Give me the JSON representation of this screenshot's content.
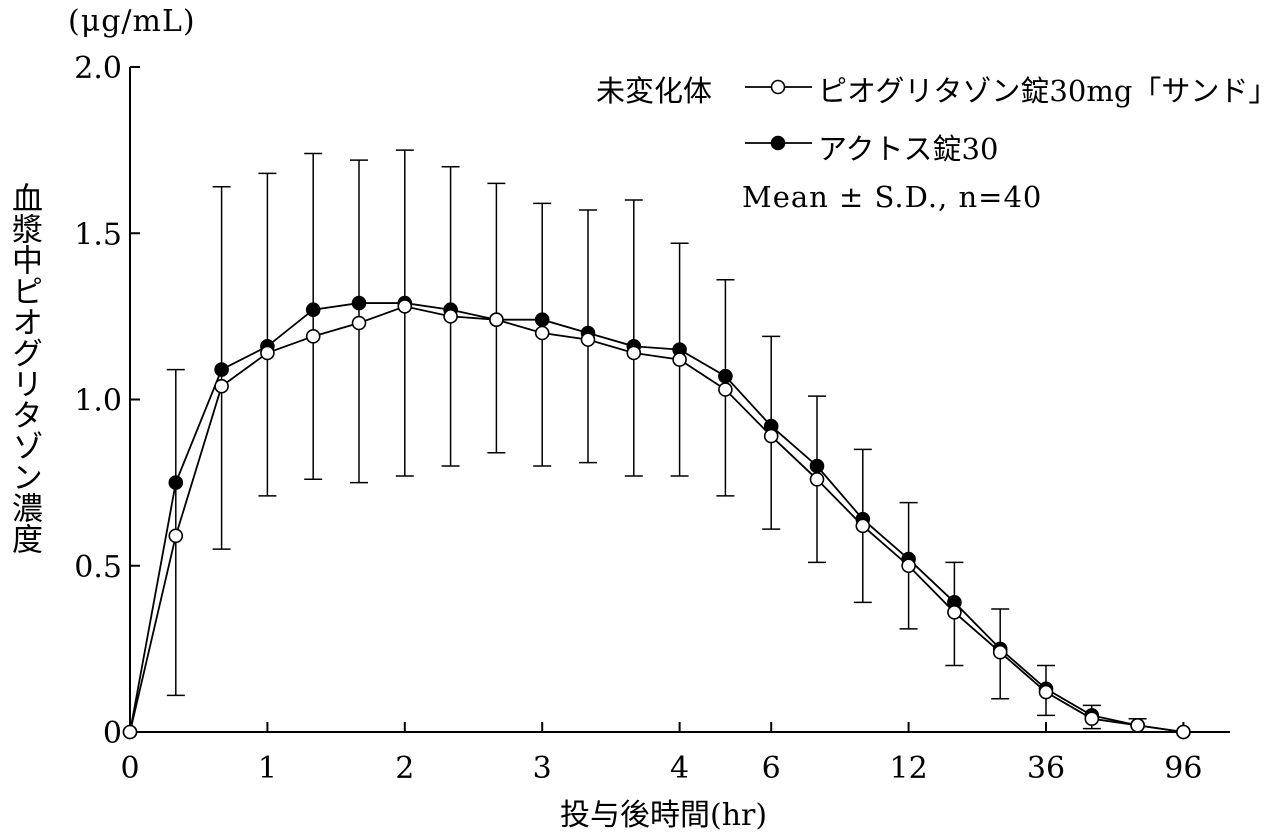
{
  "chart_data": {
    "type": "line",
    "unit": "(μg/mL)",
    "ylabel": "血漿中ピオグリタゾン濃度",
    "xlabel": "投与後時間(hr)",
    "ylim": [
      0,
      2.0
    ],
    "yticks": [
      "0",
      "0.5",
      "1.0",
      "1.5",
      "2.0"
    ],
    "x": [
      0,
      0.33,
      0.67,
      1,
      1.33,
      1.67,
      2,
      2.33,
      2.67,
      3,
      3.33,
      3.67,
      4,
      5,
      6,
      8,
      10,
      12,
      16,
      24,
      36,
      48,
      72,
      96
    ],
    "xtick_labels": [
      "0",
      "1",
      "2",
      "3",
      "4",
      "6",
      "12",
      "36",
      "96"
    ],
    "legend_heading": "未変化体",
    "legend_note": "Mean ± S.D., n=40",
    "series": [
      {
        "name": "ピオグリタゾン錠30mg「サンド」",
        "marker": "open-circle",
        "values": [
          0,
          0.59,
          1.04,
          1.14,
          1.19,
          1.23,
          1.28,
          1.25,
          1.24,
          1.2,
          1.18,
          1.14,
          1.12,
          1.03,
          0.89,
          0.76,
          0.62,
          0.5,
          0.36,
          0.24,
          0.12,
          0.04,
          0.02,
          0
        ]
      },
      {
        "name": "アクトス錠30",
        "marker": "filled-circle",
        "values": [
          0,
          0.75,
          1.09,
          1.16,
          1.27,
          1.29,
          1.29,
          1.27,
          1.24,
          1.24,
          1.2,
          1.16,
          1.15,
          1.07,
          0.92,
          0.8,
          0.64,
          0.52,
          0.39,
          0.25,
          0.13,
          0.05,
          0.02,
          0
        ],
        "error_upper": [
          0,
          1.09,
          1.64,
          1.68,
          1.74,
          1.72,
          1.75,
          1.7,
          1.65,
          1.59,
          1.57,
          1.6,
          1.47,
          1.36,
          1.19,
          1.01,
          0.85,
          0.69,
          0.51,
          0.37,
          0.2,
          0.08,
          0.04,
          0
        ],
        "error_lower": [
          0,
          0.11,
          0.55,
          0.71,
          0.76,
          0.75,
          0.77,
          0.8,
          0.84,
          0.8,
          0.81,
          0.77,
          0.77,
          0.71,
          0.61,
          0.51,
          0.39,
          0.31,
          0.2,
          0.1,
          0.05,
          0.01,
          0,
          0
        ]
      }
    ],
    "grid": false,
    "legend_position": "top-right"
  }
}
